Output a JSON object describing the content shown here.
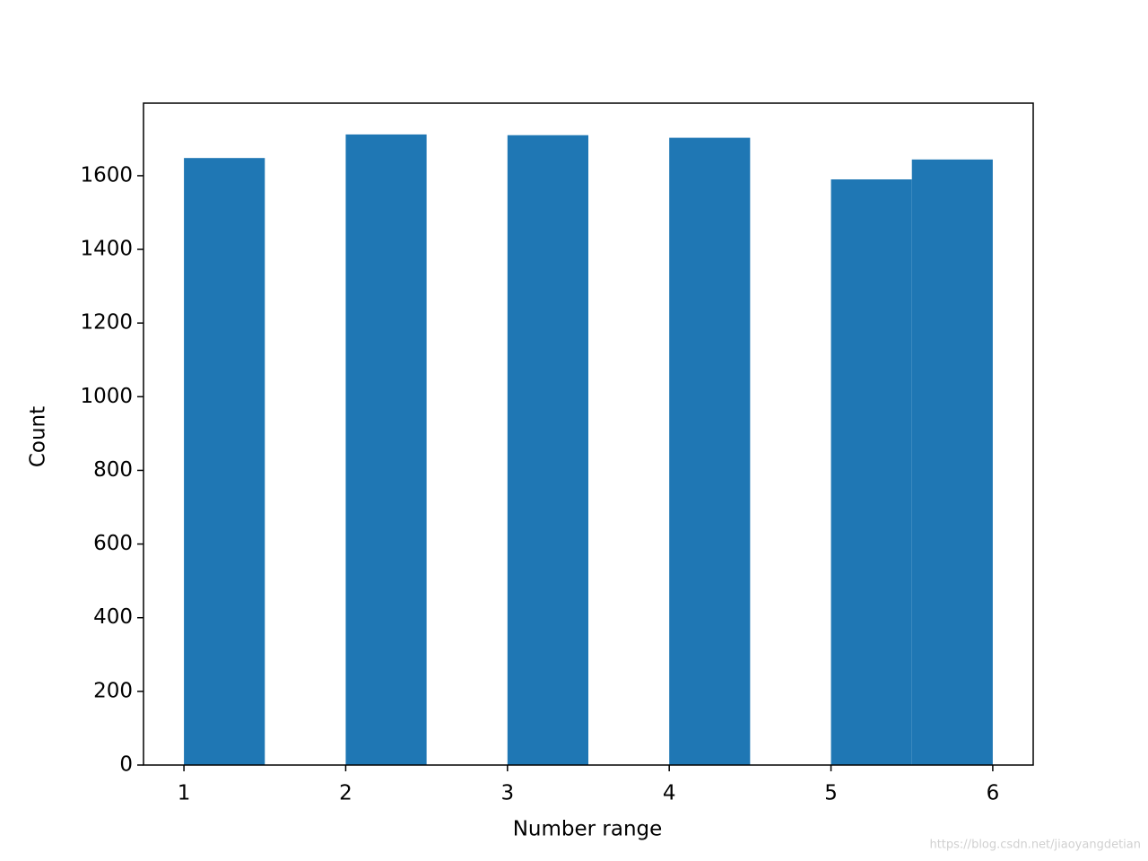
{
  "chart_data": {
    "type": "histogram",
    "xlabel": "Number range",
    "ylabel": "Count",
    "bins": [
      1,
      1.5,
      2,
      2.5,
      3,
      3.5,
      4,
      4.5,
      5,
      5.5,
      6
    ],
    "values": [
      1648,
      0,
      1712,
      0,
      1710,
      0,
      1703,
      0,
      1590,
      1644
    ],
    "color": "#1f77b4",
    "xlim": [
      0.75,
      6.25
    ],
    "xticks": [
      1,
      2,
      3,
      4,
      5,
      6
    ],
    "ylim": [
      0,
      1797
    ],
    "yticks": [
      0,
      200,
      400,
      600,
      800,
      1000,
      1200,
      1400,
      1600
    ],
    "watermark": "https://blog.csdn.net/jiaoyangdetian"
  }
}
